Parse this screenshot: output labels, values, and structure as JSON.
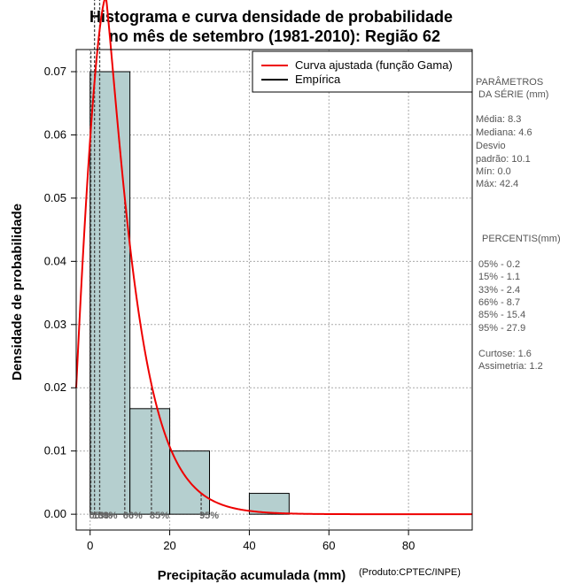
{
  "chart_data": {
    "type": "bar",
    "title_line1": "Histograma e curva densidade de probabilidade",
    "title_line2": "no mês de setembro (1981-2010): Região 62",
    "xlabel": "Precipitação acumulada (mm)",
    "ylabel": "Densidade de probabilidade",
    "credit": "(Produto:CPTEC/INPE)",
    "xlim": [
      -3.5,
      96
    ],
    "ylim": [
      -0.0025,
      0.0735
    ],
    "x_ticks": [
      0,
      20,
      40,
      60,
      80
    ],
    "y_ticks": [
      "0.00",
      "0.01",
      "0.02",
      "0.03",
      "0.04",
      "0.05",
      "0.06",
      "0.07"
    ],
    "grid": true,
    "bars": [
      {
        "from": 0,
        "to": 10,
        "value": 0.07
      },
      {
        "from": 10,
        "to": 20,
        "value": 0.0167
      },
      {
        "from": 20,
        "to": 30,
        "value": 0.01
      },
      {
        "from": 30,
        "to": 40,
        "value": 0.0
      },
      {
        "from": 40,
        "to": 50,
        "value": 0.0033
      }
    ],
    "gamma_fit": {
      "shape": 1.35,
      "scale": 6.15,
      "color": "#ee0000"
    },
    "percentiles": [
      {
        "label": "05%",
        "value": 0.2
      },
      {
        "label": "15%",
        "value": 1.1
      },
      {
        "label": "33%",
        "value": 2.4
      },
      {
        "label": "66%",
        "value": 8.7
      },
      {
        "label": "85%",
        "value": 15.4
      },
      {
        "label": "95%",
        "value": 27.9
      }
    ],
    "legend": [
      {
        "label": "Curva ajustada (função Gama)",
        "color": "#ee0000"
      },
      {
        "label": "Empírica",
        "color": "#000000"
      }
    ],
    "bar_color": "#b5cfcf",
    "legend_position": "top-right"
  },
  "sidebar": {
    "params_title_1": "PARÂMETROS",
    "params_title_2": "DA SÉRIE (mm)",
    "media": "Média:  8.3",
    "mediana": "Mediana:  4.6",
    "desvio_1": "Desvio",
    "desvio_2": "padrão:  10.1",
    "min": "Mín:  0.0",
    "max": "Máx:  42.4",
    "pct_title": "PERCENTIS(mm)",
    "p05": "05% -  0.2",
    "p15": "15% -  1.1",
    "p33": "33% -  2.4",
    "p66": "66% -  8.7",
    "p85": "85% -  15.4",
    "p95": "95% -  27.9",
    "curtose": "Curtose:  1.6",
    "assimetria": "Assimetria:  1.2"
  }
}
